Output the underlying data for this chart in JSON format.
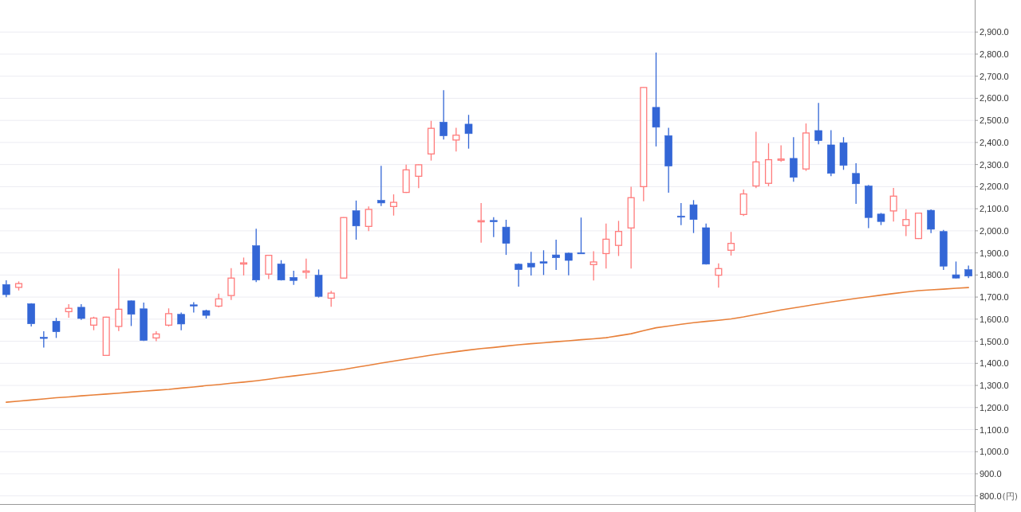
{
  "chart_data": {
    "type": "candlestick",
    "categories": [
      null,
      null,
      null,
      null,
      null,
      null,
      null,
      null,
      null,
      null,
      null,
      null,
      null,
      null,
      null,
      null,
      null,
      null,
      null,
      null,
      null,
      null,
      null,
      null,
      null,
      null,
      null,
      null,
      null,
      null,
      null,
      null,
      null,
      null,
      null,
      null,
      null,
      null,
      null,
      null,
      null,
      null,
      null,
      null,
      null,
      null,
      null,
      null,
      null,
      null,
      null,
      null,
      null,
      null,
      null,
      null,
      null,
      null,
      null,
      null,
      null,
      null,
      null,
      null,
      null,
      null,
      null,
      null,
      null,
      null,
      null,
      null,
      null,
      null,
      null,
      null,
      null,
      null
    ],
    "ohlc": [
      [
        1757,
        1776,
        1699,
        1711
      ],
      [
        1744,
        1771,
        1730,
        1761
      ],
      [
        1670,
        1672,
        1567,
        1579
      ],
      [
        1518,
        1545,
        1471,
        1514
      ],
      [
        1591,
        1606,
        1515,
        1543
      ],
      [
        1634,
        1668,
        1607,
        1649
      ],
      [
        1654,
        1668,
        1597,
        1603
      ],
      [
        1573,
        1611,
        1550,
        1605
      ],
      [
        1436,
        1611,
        1434,
        1609
      ],
      [
        1567,
        1829,
        1546,
        1645
      ],
      [
        1683,
        1685,
        1569,
        1622
      ],
      [
        1647,
        1675,
        1501,
        1504
      ],
      [
        1515,
        1545,
        1500,
        1533
      ],
      [
        1573,
        1649,
        1567,
        1625
      ],
      [
        1622,
        1630,
        1550,
        1578
      ],
      [
        1665,
        1677,
        1630,
        1661
      ],
      [
        1639,
        1643,
        1603,
        1617
      ],
      [
        1659,
        1716,
        1653,
        1692
      ],
      [
        1707,
        1831,
        1687,
        1786
      ],
      [
        1850,
        1879,
        1798,
        1855
      ],
      [
        1933,
        2009,
        1768,
        1777
      ],
      [
        1804,
        1891,
        1781,
        1889
      ],
      [
        1850,
        1867,
        1775,
        1777
      ],
      [
        1789,
        1819,
        1755,
        1775
      ],
      [
        1812,
        1874,
        1783,
        1818
      ],
      [
        1799,
        1825,
        1698,
        1703
      ],
      [
        1695,
        1728,
        1656,
        1718
      ],
      [
        1786,
        2062,
        1784,
        2060
      ],
      [
        2091,
        2137,
        1960,
        2022
      ],
      [
        2020,
        2110,
        1999,
        2097
      ],
      [
        2138,
        2294,
        2112,
        2126
      ],
      [
        2110,
        2165,
        2069,
        2129
      ],
      [
        2174,
        2300,
        2172,
        2276
      ],
      [
        2247,
        2301,
        2193,
        2299
      ],
      [
        2348,
        2498,
        2318,
        2464
      ],
      [
        2492,
        2637,
        2413,
        2430
      ],
      [
        2411,
        2466,
        2359,
        2433
      ],
      [
        2483,
        2525,
        2372,
        2440
      ],
      [
        2042,
        2126,
        1946,
        2046
      ],
      [
        2047,
        2062,
        1972,
        2041
      ],
      [
        2017,
        2050,
        1891,
        1943
      ],
      [
        1849,
        1853,
        1747,
        1824
      ],
      [
        1853,
        1905,
        1798,
        1836
      ],
      [
        1860,
        1912,
        1800,
        1853
      ],
      [
        1891,
        1960,
        1823,
        1878
      ],
      [
        1899,
        1901,
        1799,
        1866
      ],
      [
        1901,
        2060,
        1898,
        1899
      ],
      [
        1847,
        1908,
        1775,
        1859
      ],
      [
        1897,
        2033,
        1829,
        1962
      ],
      [
        1934,
        2045,
        1886,
        1997
      ],
      [
        2013,
        2200,
        1829,
        2150
      ],
      [
        2200,
        2651,
        2134,
        2649
      ],
      [
        2559,
        2807,
        2382,
        2469
      ],
      [
        2431,
        2466,
        2173,
        2293
      ],
      [
        2067,
        2126,
        2026,
        2063
      ],
      [
        2118,
        2139,
        1990,
        2051
      ],
      [
        2014,
        2033,
        1847,
        1849
      ],
      [
        1799,
        1853,
        1743,
        1829
      ],
      [
        1912,
        1995,
        1888,
        1943
      ],
      [
        2074,
        2187,
        2067,
        2167
      ],
      [
        2203,
        2448,
        2193,
        2312
      ],
      [
        2215,
        2396,
        2202,
        2322
      ],
      [
        2321,
        2387,
        2312,
        2325
      ],
      [
        2328,
        2424,
        2222,
        2242
      ],
      [
        2280,
        2486,
        2271,
        2443
      ],
      [
        2454,
        2579,
        2392,
        2408
      ],
      [
        2389,
        2456,
        2247,
        2260
      ],
      [
        2399,
        2424,
        2276,
        2296
      ],
      [
        2260,
        2306,
        2122,
        2213
      ],
      [
        2203,
        2208,
        2012,
        2060
      ],
      [
        2076,
        2081,
        2026,
        2042
      ],
      [
        2090,
        2194,
        2042,
        2157
      ],
      [
        2024,
        2098,
        1976,
        2051
      ],
      [
        1965,
        2082,
        1963,
        2080
      ],
      [
        2093,
        2097,
        1990,
        2007
      ],
      [
        1997,
        2004,
        1823,
        1840
      ],
      [
        1801,
        1861,
        1784,
        1786
      ],
      [
        1824,
        1843,
        1786,
        1795
      ]
    ],
    "colors": [
      "#3366d6",
      "#ff7b7b",
      "#3366d6",
      "#3366d6",
      "#3366d6",
      "#ff7b7b",
      "#3366d6",
      "#ff7b7b",
      "#ff7b7b",
      "#ff7b7b",
      "#3366d6",
      "#3366d6",
      "#ff7b7b",
      "#ff7b7b",
      "#3366d6",
      "#3366d6",
      "#3366d6",
      "#ff7b7b",
      "#ff7b7b",
      "#ff7b7b",
      "#3366d6",
      "#ff7b7b",
      "#3366d6",
      "#3366d6",
      "#ff7b7b",
      "#3366d6",
      "#ff7b7b",
      "#ff7b7b",
      "#3366d6",
      "#ff7b7b",
      "#3366d6",
      "#ff7b7b",
      "#ff7b7b",
      "#ff7b7b",
      "#ff7b7b",
      "#3366d6",
      "#ff7b7b",
      "#3366d6",
      "#ff7b7b",
      "#3366d6",
      "#3366d6",
      "#3366d6",
      "#3366d6",
      "#3366d6",
      "#3366d6",
      "#3366d6",
      "#3366d6",
      "#ff7b7b",
      "#ff7b7b",
      "#ff7b7b",
      "#ff7b7b",
      "#ff7b7b",
      "#3366d6",
      "#3366d6",
      "#3366d6",
      "#3366d6",
      "#3366d6",
      "#ff7b7b",
      "#ff7b7b",
      "#ff7b7b",
      "#ff7b7b",
      "#ff7b7b",
      "#ff7b7b",
      "#3366d6",
      "#ff7b7b",
      "#3366d6",
      "#3366d6",
      "#3366d6",
      "#3366d6",
      "#3366d6",
      "#3366d6",
      "#ff7b7b",
      "#ff7b7b",
      "#ff7b7b",
      "#3366d6",
      "#3366d6",
      "#3366d6",
      "#3366d6"
    ],
    "series": [
      {
        "type": "line",
        "color": "#e8803a",
        "values": [
          1224,
          1229,
          1234,
          1239,
          1244,
          1248,
          1253,
          1257,
          1261,
          1265,
          1270,
          1274,
          1278,
          1282,
          1288,
          1293,
          1299,
          1304,
          1310,
          1315,
          1321,
          1328,
          1336,
          1343,
          1350,
          1357,
          1365,
          1372,
          1382,
          1391,
          1401,
          1410,
          1419,
          1428,
          1437,
          1445,
          1453,
          1460,
          1467,
          1472,
          1478,
          1484,
          1489,
          1493,
          1498,
          1502,
          1507,
          1511,
          1516,
          1525,
          1534,
          1548,
          1561,
          1569,
          1577,
          1584,
          1590,
          1595,
          1601,
          1610,
          1621,
          1631,
          1642,
          1651,
          1660,
          1669,
          1678,
          1686,
          1694,
          1701,
          1709,
          1716,
          1723,
          1729,
          1733,
          1736,
          1740,
          1743
        ]
      }
    ],
    "ylim": [
      763,
      3045
    ],
    "yticks": [
      {
        "value": 800,
        "label": "800.0"
      },
      {
        "value": 900,
        "label": "900.0"
      },
      {
        "value": 1000,
        "label": "1,000.0"
      },
      {
        "value": 1100,
        "label": "1,100.0"
      },
      {
        "value": 1200,
        "label": "1,200.0"
      },
      {
        "value": 1300,
        "label": "1,300.0"
      },
      {
        "value": 1400,
        "label": "1,400.0"
      },
      {
        "value": 1500,
        "label": "1,500.0"
      },
      {
        "value": 1600,
        "label": "1,600.0"
      },
      {
        "value": 1700,
        "label": "1,700.0"
      },
      {
        "value": 1800,
        "label": "1,800.0"
      },
      {
        "value": 1900,
        "label": "1,900.0"
      },
      {
        "value": 2000,
        "label": "2,000.0"
      },
      {
        "value": 2100,
        "label": "2,100.0"
      },
      {
        "value": 2200,
        "label": "2,200.0"
      },
      {
        "value": 2300,
        "label": "2,300.0"
      },
      {
        "value": 2400,
        "label": "2,400.0"
      },
      {
        "value": 2500,
        "label": "2,500.0"
      },
      {
        "value": 2600,
        "label": "2,600.0"
      },
      {
        "value": 2700,
        "label": "2,700.0"
      },
      {
        "value": 2800,
        "label": "2,800.0"
      },
      {
        "value": 2900,
        "label": "2,900.0"
      }
    ],
    "grid": "y",
    "tick_labels": "y",
    "annotations": [
      "(円)"
    ]
  }
}
